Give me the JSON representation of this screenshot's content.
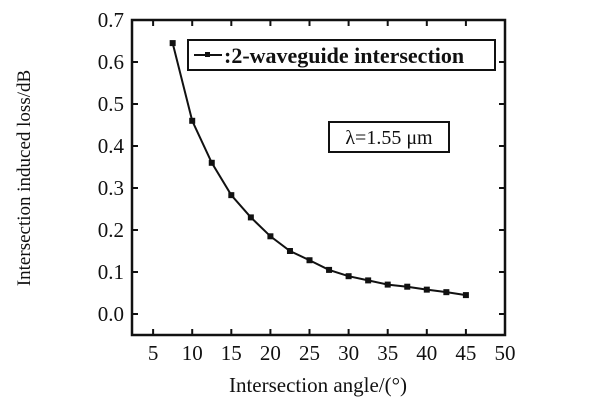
{
  "chart_data": {
    "type": "line",
    "xlabel": "Intersection angle/(°)",
    "ylabel": "Intersection induced loss/dB",
    "xlim": [
      2.3,
      50
    ],
    "ylim": [
      -0.05,
      0.7
    ],
    "xticks": [
      5,
      10,
      15,
      20,
      25,
      30,
      35,
      40,
      45,
      50
    ],
    "yticks": [
      0.0,
      0.1,
      0.2,
      0.3,
      0.4,
      0.5,
      0.6,
      0.7
    ],
    "ytick_labels": [
      "0.0",
      "0.1",
      "0.2",
      "0.3",
      "0.4",
      "0.5",
      "0.6",
      "0.7"
    ],
    "grid": false,
    "legend_position": "top-right",
    "series": [
      {
        "name": ":2-waveguide intersection",
        "x": [
          7.5,
          10,
          12.5,
          15,
          17.5,
          20,
          22.5,
          25,
          27.5,
          30,
          32.5,
          35,
          37.5,
          40,
          42.5,
          45
        ],
        "y": [
          0.645,
          0.46,
          0.36,
          0.283,
          0.23,
          0.185,
          0.15,
          0.128,
          0.105,
          0.09,
          0.08,
          0.07,
          0.065,
          0.058,
          0.052,
          0.045
        ],
        "color": "#111111"
      }
    ],
    "annotations": [
      "λ=1.55 μm"
    ]
  }
}
